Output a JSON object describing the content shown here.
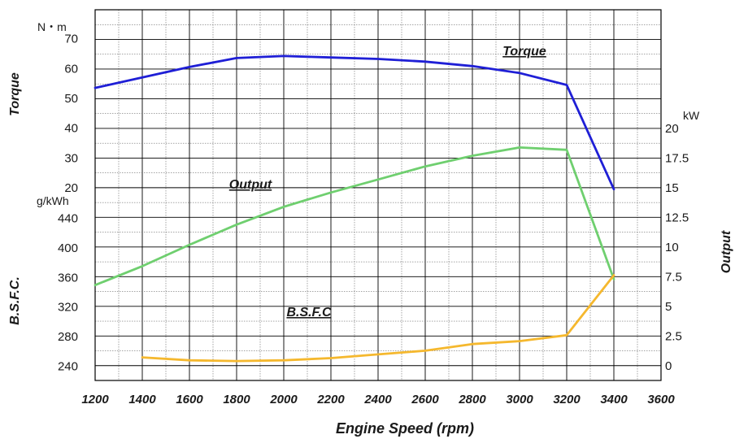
{
  "chart_data": {
    "type": "line",
    "xlabel": "Engine Speed  (rpm)",
    "x_ticks": [
      1200,
      1400,
      1600,
      1800,
      2000,
      2200,
      2400,
      2600,
      2800,
      3000,
      3200,
      3400,
      3600
    ],
    "xlim": [
      1200,
      3600
    ],
    "grid": true,
    "axes": {
      "torque": {
        "label": "Torque",
        "unit": "N・m",
        "ticks": [
          20,
          30,
          40,
          50,
          60,
          70
        ]
      },
      "bsfc": {
        "label": "B.S.F.C.",
        "unit": "g/kWh",
        "ticks": [
          240,
          280,
          320,
          360,
          400,
          440
        ]
      },
      "output": {
        "label": "Output",
        "unit": "kW",
        "ticks": [
          "0",
          "2.5",
          "5",
          "7.5",
          "10",
          "12.5",
          "15",
          "17.5",
          "20"
        ]
      }
    },
    "series": [
      {
        "name": "Torque",
        "axis": "torque",
        "color": "#1f1fd6",
        "x": [
          1200,
          1400,
          1600,
          1800,
          2000,
          2200,
          2400,
          2600,
          2800,
          3000,
          3200,
          3400
        ],
        "values": [
          53.5,
          57,
          60.5,
          63.5,
          64.2,
          63.7,
          63.2,
          62.3,
          60.8,
          58.5,
          54.5,
          19.5
        ]
      },
      {
        "name": "Output",
        "axis": "output",
        "color": "#6fcf6f",
        "x": [
          1200,
          1400,
          1600,
          1800,
          2000,
          2200,
          2400,
          2600,
          2800,
          3000,
          3200,
          3400
        ],
        "values": [
          6.8,
          8.4,
          10.2,
          11.9,
          13.4,
          14.6,
          15.7,
          16.8,
          17.7,
          18.4,
          18.2,
          7.3
        ]
      },
      {
        "name": "B.S.F.C",
        "axis": "bsfc",
        "color": "#f5b82e",
        "x": [
          1400,
          1600,
          1800,
          2000,
          2200,
          2400,
          2600,
          2800,
          3000,
          3200,
          3400
        ],
        "values": [
          252,
          248,
          247,
          248,
          251,
          256,
          261,
          270,
          274,
          282,
          363
        ]
      }
    ]
  }
}
